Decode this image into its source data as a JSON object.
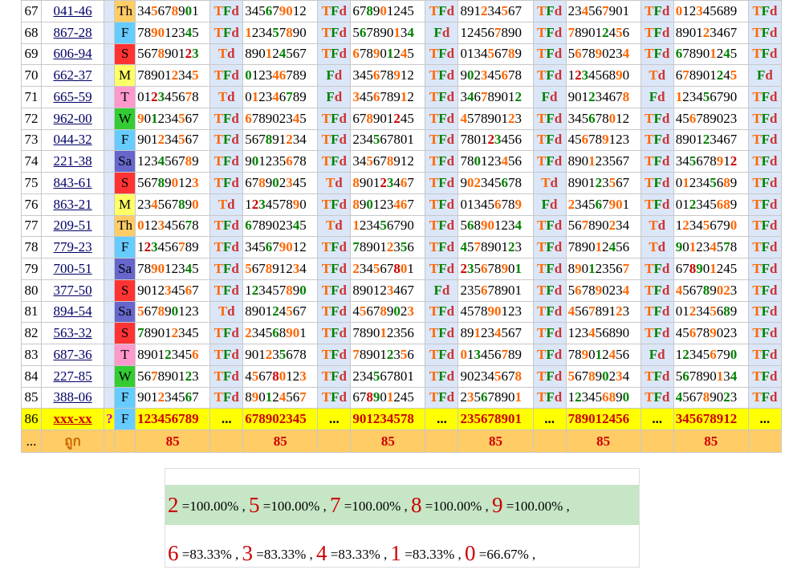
{
  "color_map": {
    "0": "#000000",
    "1": "#ff6600",
    "2": "#008000",
    "3": "#cc0000"
  },
  "day_colors": {
    "Th": "#ffcc66",
    "F": "#66ccff",
    "S": "#ff3333",
    "M": "#ffff66",
    "T": "#ff99cc",
    "W": "#33cc33",
    "Sa": "#6666cc"
  },
  "rows": [
    {
      "num": "67",
      "code": "041-46",
      "day": "Th",
      "draws": [
        {
          "v": "345678901",
          "c": "0110000000",
          "r": "TFd"
        },
        {
          "v": "345679012",
          "c": "1110000000",
          "r": "TFd"
        },
        {
          "v": "678901245",
          "c": "000000011",
          "r": "TFd"
        },
        {
          "v": "891234567",
          "c": "000001100",
          "r": "TFd"
        },
        {
          "v": "234567901",
          "c": "000000000",
          "r": "TFd"
        },
        {
          "v": "012345689",
          "c": "000001100",
          "r": "TFd"
        }
      ]
    },
    {
      "num": "68",
      "code": "867-28",
      "day": "F",
      "draws": [
        {
          "v": "789012345",
          "c": "000000300",
          "r": "TFd"
        },
        {
          "v": "123457890",
          "c": "000000000",
          "r": "TFd"
        },
        {
          "v": "567890134",
          "c": "000000000",
          "r": "Fd"
        },
        {
          "v": "124567890",
          "c": "000000000",
          "r": "TFd"
        },
        {
          "v": "789012456",
          "c": "000000000",
          "r": "TFd"
        },
        {
          "v": "890123467",
          "c": "000000000",
          "r": "TFd"
        }
      ]
    },
    {
      "num": "69",
      "code": "606-94",
      "day": "S",
      "draws": [
        {
          "v": "567890123",
          "c": "000000000",
          "r": "Td"
        },
        {
          "v": "890124567",
          "c": "000000000",
          "r": "TFd"
        },
        {
          "v": "678901245",
          "c": "000000011",
          "r": "TFd"
        },
        {
          "v": "013456789",
          "c": "000000000",
          "r": "TFd"
        },
        {
          "v": "567890234",
          "c": "000000000",
          "r": "TFd"
        },
        {
          "v": "678901245",
          "c": "000200000",
          "r": "TFd"
        }
      ]
    },
    {
      "num": "70",
      "code": "662-37",
      "day": "M",
      "draws": [
        {
          "v": "789012345",
          "c": "000000000",
          "r": "TFd"
        },
        {
          "v": "012346789",
          "c": "000000000",
          "r": "Fd"
        },
        {
          "v": "345678912",
          "c": "000000000",
          "r": "TFd"
        },
        {
          "v": "902345678",
          "c": "000000000",
          "r": "TFd"
        },
        {
          "v": "123456890",
          "c": "000000000",
          "r": "Td"
        },
        {
          "v": "678901245",
          "c": "000000000",
          "r": "Fd"
        }
      ]
    },
    {
      "num": "71",
      "code": "665-59",
      "day": "T",
      "draws": [
        {
          "v": "012345678",
          "c": "000000000",
          "r": "Td"
        },
        {
          "v": "012346789",
          "c": "000000000",
          "r": "Fd"
        },
        {
          "v": "345678912",
          "c": "000000000",
          "r": "TFd"
        },
        {
          "v": "346789012",
          "c": "000000000",
          "r": "Fd"
        },
        {
          "v": "901234678",
          "c": "000000000",
          "r": "Fd"
        },
        {
          "v": "123456790",
          "c": "000000000",
          "r": "TFd"
        }
      ]
    },
    {
      "num": "72",
      "code": "962-00",
      "day": "W",
      "draws": [
        {
          "v": "901234567",
          "c": "000000000",
          "r": "TFd"
        },
        {
          "v": "678902345",
          "c": "000000000",
          "r": "TFd"
        },
        {
          "v": "678901245",
          "c": "000000000",
          "r": "TFd"
        },
        {
          "v": "457890123",
          "c": "000000000",
          "r": "TFd"
        },
        {
          "v": "345678012",
          "c": "000000000",
          "r": "TFd"
        },
        {
          "v": "456789023",
          "c": "000000000",
          "r": "TFd"
        }
      ]
    },
    {
      "num": "73",
      "code": "044-32",
      "day": "F",
      "draws": [
        {
          "v": "901234567",
          "c": "000000000",
          "r": "TFd"
        },
        {
          "v": "567891234",
          "c": "000000000",
          "r": "TFd"
        },
        {
          "v": "234567801",
          "c": "000000000",
          "r": "TFd"
        },
        {
          "v": "780123456",
          "c": "000000000",
          "r": "TFd"
        },
        {
          "v": "456789123",
          "c": "000000000",
          "r": "TFd"
        },
        {
          "v": "890123467",
          "c": "000000000",
          "r": "TFd"
        }
      ]
    },
    {
      "num": "74",
      "code": "221-38",
      "day": "Sa",
      "draws": [
        {
          "v": "123456789",
          "c": "000000000",
          "r": "TFd"
        },
        {
          "v": "901235678",
          "c": "000000000",
          "r": "TFd"
        },
        {
          "v": "345678912",
          "c": "000000000",
          "r": "TFd"
        },
        {
          "v": "780123456",
          "c": "000000000",
          "r": "TFd"
        },
        {
          "v": "890123567",
          "c": "000000000",
          "r": "TFd"
        },
        {
          "v": "345678912",
          "c": "000000000",
          "r": "TFd"
        }
      ]
    },
    {
      "num": "75",
      "code": "843-61",
      "day": "S",
      "draws": [
        {
          "v": "567890123",
          "c": "000000000",
          "r": "TFd"
        },
        {
          "v": "678902345",
          "c": "000000000",
          "r": "Td"
        },
        {
          "v": "890123467",
          "c": "000000000",
          "r": "TFd"
        },
        {
          "v": "902345678",
          "c": "000000000",
          "r": "Td"
        },
        {
          "v": "890123567",
          "c": "000000000",
          "r": "TFd"
        },
        {
          "v": "012345689",
          "c": "000000000",
          "r": "TFd"
        }
      ]
    },
    {
      "num": "76",
      "code": "863-21",
      "day": "M",
      "draws": [
        {
          "v": "234567890",
          "c": "000000000",
          "r": "Td"
        },
        {
          "v": "123457890",
          "c": "000000000",
          "r": "TFd"
        },
        {
          "v": "890123467",
          "c": "000000000",
          "r": "TFd"
        },
        {
          "v": "013456789",
          "c": "000000000",
          "r": "Fd"
        },
        {
          "v": "234567901",
          "c": "000000000",
          "r": "TFd"
        },
        {
          "v": "012345689",
          "c": "000000000",
          "r": "TFd"
        }
      ]
    },
    {
      "num": "77",
      "code": "209-51",
      "day": "Th",
      "draws": [
        {
          "v": "012345678",
          "c": "000000000",
          "r": "TFd"
        },
        {
          "v": "678902345",
          "c": "000000000",
          "r": "Td"
        },
        {
          "v": "123456790",
          "c": "000000000",
          "r": "TFd"
        },
        {
          "v": "568901234",
          "c": "000000000",
          "r": "TFd"
        },
        {
          "v": "567890234",
          "c": "000000000",
          "r": "Td"
        },
        {
          "v": "123456790",
          "c": "000000000",
          "r": "TFd"
        }
      ]
    },
    {
      "num": "78",
      "code": "779-23",
      "day": "F",
      "draws": [
        {
          "v": "123456789",
          "c": "000000000",
          "r": "TFd"
        },
        {
          "v": "345679012",
          "c": "000000000",
          "r": "TFd"
        },
        {
          "v": "789012356",
          "c": "000000000",
          "r": "TFd"
        },
        {
          "v": "457890123",
          "c": "000000000",
          "r": "TFd"
        },
        {
          "v": "789012456",
          "c": "000000000",
          "r": "Td"
        },
        {
          "v": "901234578",
          "c": "000000000",
          "r": "TFd"
        }
      ]
    },
    {
      "num": "79",
      "code": "700-51",
      "day": "Sa",
      "draws": [
        {
          "v": "789012345",
          "c": "000000000",
          "r": "TFd"
        },
        {
          "v": "567891234",
          "c": "000000000",
          "r": "TFd"
        },
        {
          "v": "234567801",
          "c": "000000000",
          "r": "TFd"
        },
        {
          "v": "235678901",
          "c": "000000000",
          "r": "TFd"
        },
        {
          "v": "890123567",
          "c": "000000000",
          "r": "TFd"
        },
        {
          "v": "678901245",
          "c": "000000000",
          "r": "TFd"
        }
      ]
    },
    {
      "num": "80",
      "code": "377-50",
      "day": "S",
      "draws": [
        {
          "v": "901234567",
          "c": "000000000",
          "r": "TFd"
        },
        {
          "v": "123457890",
          "c": "000000000",
          "r": "TFd"
        },
        {
          "v": "890123467",
          "c": "000000000",
          "r": "Fd"
        },
        {
          "v": "235678901",
          "c": "000000000",
          "r": "TFd"
        },
        {
          "v": "567890234",
          "c": "000000000",
          "r": "TFd"
        },
        {
          "v": "456789023",
          "c": "000000000",
          "r": "TFd"
        }
      ]
    },
    {
      "num": "81",
      "code": "894-54",
      "day": "Sa",
      "draws": [
        {
          "v": "567890123",
          "c": "000000000",
          "r": "Td"
        },
        {
          "v": "890124567",
          "c": "000000000",
          "r": "TFd"
        },
        {
          "v": "456789023",
          "c": "000000000",
          "r": "TFd"
        },
        {
          "v": "457890123",
          "c": "000000000",
          "r": "TFd"
        },
        {
          "v": "456789123",
          "c": "000000000",
          "r": "TFd"
        },
        {
          "v": "012345689",
          "c": "000000000",
          "r": "TFd"
        }
      ]
    },
    {
      "num": "82",
      "code": "563-32",
      "day": "S",
      "draws": [
        {
          "v": "789012345",
          "c": "000000000",
          "r": "TFd"
        },
        {
          "v": "234568901",
          "c": "000000000",
          "r": "TFd"
        },
        {
          "v": "789012356",
          "c": "000000000",
          "r": "TFd"
        },
        {
          "v": "891234567",
          "c": "000000000",
          "r": "TFd"
        },
        {
          "v": "123456890",
          "c": "000000000",
          "r": "TFd"
        },
        {
          "v": "456789023",
          "c": "000000000",
          "r": "TFd"
        }
      ]
    },
    {
      "num": "83",
      "code": "687-36",
      "day": "T",
      "draws": [
        {
          "v": "890123456",
          "c": "000000000",
          "r": "TFd"
        },
        {
          "v": "901235678",
          "c": "000000000",
          "r": "TFd"
        },
        {
          "v": "789012356",
          "c": "000000000",
          "r": "TFd"
        },
        {
          "v": "013456789",
          "c": "000000000",
          "r": "TFd"
        },
        {
          "v": "789012456",
          "c": "000000000",
          "r": "Fd"
        },
        {
          "v": "123456790",
          "c": "000000000",
          "r": "TFd"
        }
      ]
    },
    {
      "num": "84",
      "code": "227-85",
      "day": "W",
      "draws": [
        {
          "v": "567890123",
          "c": "000000000",
          "r": "TFd"
        },
        {
          "v": "456780123",
          "c": "000000000",
          "r": "TFd"
        },
        {
          "v": "234567801",
          "c": "000000000",
          "r": "TFd"
        },
        {
          "v": "902345678",
          "c": "000000000",
          "r": "TFd"
        },
        {
          "v": "567890234",
          "c": "000000000",
          "r": "TFd"
        },
        {
          "v": "567890134",
          "c": "000000000",
          "r": "TFd"
        }
      ]
    },
    {
      "num": "85",
      "code": "388-06",
      "day": "F",
      "draws": [
        {
          "v": "901234567",
          "c": "000000000",
          "r": "TFd"
        },
        {
          "v": "890124567",
          "c": "000000000",
          "r": "TFd"
        },
        {
          "v": "678901245",
          "c": "000000000",
          "r": "TFd"
        },
        {
          "v": "235678901",
          "c": "000000000",
          "r": "TFd"
        },
        {
          "v": "123456890",
          "c": "000000000",
          "r": "TFd"
        },
        {
          "v": "456789023",
          "c": "000000000",
          "r": "TFd"
        }
      ]
    }
  ],
  "highlights": {
    "67": [
      "0110000000",
      "1110000000",
      "000002202",
      "000011100",
      "012000000",
      "000022200"
    ],
    "68": [
      "000000300",
      "111111111",
      "000000000",
      "001100000",
      "000000000",
      "000000000"
    ]
  },
  "prediction": {
    "num": "86",
    "code": "xxx-xx",
    "q": "?",
    "day": "F",
    "values": [
      "123456789",
      "678902345",
      "901234578",
      "235678901",
      "789012456",
      "345678912"
    ],
    "dots": "..."
  },
  "totals": {
    "first": "...",
    "label": "ถูก",
    "values": [
      "85",
      "85",
      "85",
      "85",
      "85",
      "85"
    ]
  },
  "stats": {
    "line1": [
      {
        "d": "2",
        "p": "=100.00%"
      },
      {
        "d": "5",
        "p": "=100.00%"
      },
      {
        "d": "7",
        "p": "=100.00%"
      },
      {
        "d": "8",
        "p": "=100.00%"
      },
      {
        "d": "9",
        "p": "=100.00%"
      }
    ],
    "line2": [
      {
        "d": "6",
        "p": "=83.33%"
      },
      {
        "d": "3",
        "p": "=83.33%"
      },
      {
        "d": "4",
        "p": "=83.33%"
      },
      {
        "d": "1",
        "p": "=83.33%"
      },
      {
        "d": "0",
        "p": "=66.67%"
      }
    ],
    "separator": " , "
  }
}
